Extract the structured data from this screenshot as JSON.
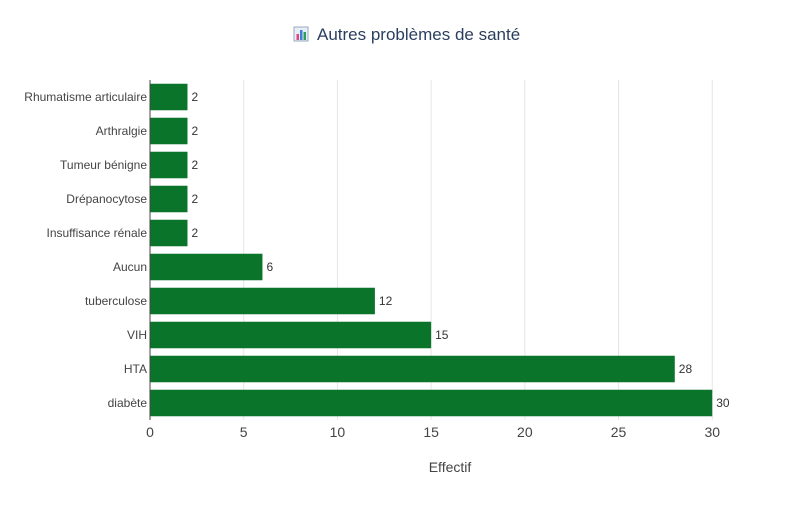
{
  "chart_data": {
    "type": "bar",
    "orientation": "horizontal",
    "title": "Autres problèmes de santé",
    "title_icon": "bar-chart-icon",
    "xlabel": "Effectif",
    "ylabel": "",
    "categories": [
      "diabète",
      "HTA",
      "VIH",
      "tuberculose",
      "Aucun",
      "Insuffisance rénale",
      "Drépanocytose",
      "Tumeur bénigne",
      "Arthralgie",
      "Rhumatisme articulaire"
    ],
    "values": [
      30,
      28,
      15,
      12,
      6,
      2,
      2,
      2,
      2,
      2
    ],
    "xlim": [
      0,
      31
    ],
    "xticks": [
      0,
      5,
      10,
      15,
      20,
      25,
      30
    ],
    "grid": true,
    "legend": "none",
    "bar_color": "#0b742b"
  }
}
